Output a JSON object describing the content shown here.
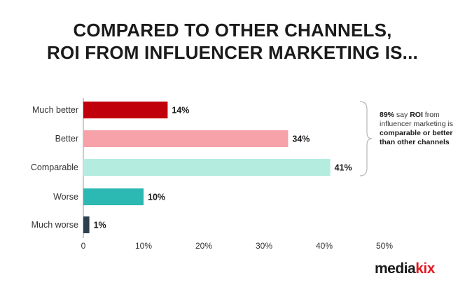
{
  "chart_data": {
    "type": "bar",
    "orientation": "horizontal",
    "title": "COMPARED TO OTHER CHANNELS,",
    "subtitle": "ROI FROM INFLUENCER MARKETING IS...",
    "categories": [
      "Much better",
      "Better",
      "Comparable",
      "Worse",
      "Much worse"
    ],
    "values": [
      14,
      34,
      41,
      10,
      1
    ],
    "value_labels": [
      "14%",
      "34%",
      "41%",
      "10%",
      "1%"
    ],
    "colors": [
      "#c0000b",
      "#f7a2a9",
      "#b4ece0",
      "#2cb8b3",
      "#2f3f4c"
    ],
    "xlim": [
      0,
      50
    ],
    "xticks": [
      "0",
      "10%",
      "20%",
      "30%",
      "40%",
      "50%"
    ],
    "xtick_values": [
      0,
      10,
      20,
      30,
      40,
      50
    ],
    "grid": false,
    "annotation": {
      "highlight": "89%",
      "text_1": " say ",
      "emphasis_1": "ROI",
      "text_2": " from influencer marketing is ",
      "emphasis_2": "comparable or better than other channels"
    }
  },
  "brand": {
    "name_part1": "media",
    "name_part2": "kix"
  }
}
